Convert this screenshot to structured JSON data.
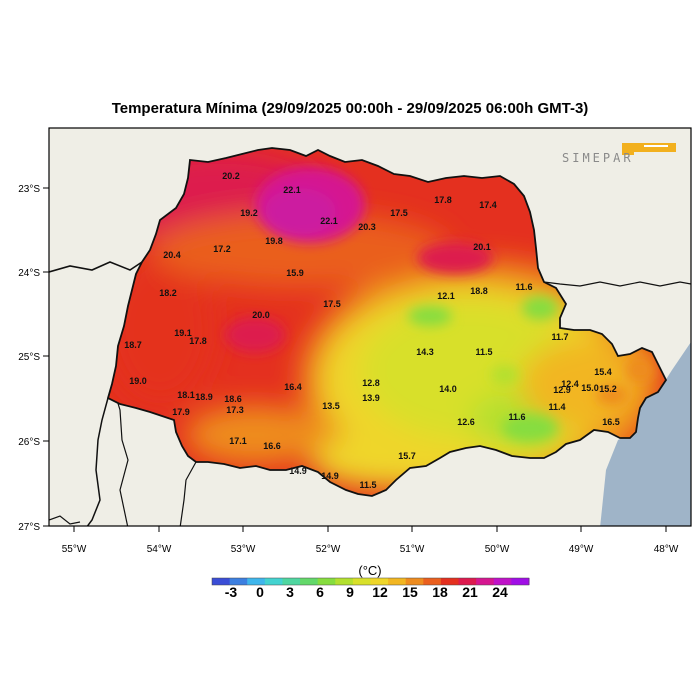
{
  "title": "Temperatura Mínima (29/09/2025 00:00h - 29/09/2025 06:00h GMT-3)",
  "logo_text": "SIMEPAR",
  "colors": {
    "land": "#efeee6",
    "ocean": "#9fb4c8",
    "logo_accent": "#f2b01e"
  },
  "axes": {
    "lon_labels": [
      "55°W",
      "54°W",
      "53°W",
      "52°W",
      "51°W",
      "50°W",
      "49°W",
      "48°W"
    ],
    "lat_labels": [
      "23°S",
      "24°S",
      "25°S",
      "26°S",
      "27°S"
    ]
  },
  "colorbar": {
    "unit": "(°C)",
    "ticks": [
      "-3",
      "0",
      "3",
      "6",
      "9",
      "12",
      "15",
      "18",
      "21",
      "24"
    ],
    "colors": [
      "#3a4dd6",
      "#3c7fe0",
      "#3fb6ec",
      "#43d3d0",
      "#4fd6a0",
      "#63d86a",
      "#86dd3f",
      "#b3e02f",
      "#d8e02a",
      "#efd62a",
      "#f2b622",
      "#ee8c1f",
      "#ea5f1e",
      "#e4301f",
      "#dd1a4e",
      "#d51690",
      "#bf12c8",
      "#a00ee6"
    ]
  },
  "stations": [
    {
      "label": "20.2"
    },
    {
      "label": "22.1"
    },
    {
      "label": "19.2"
    },
    {
      "label": "22.1"
    },
    {
      "label": "20.3"
    },
    {
      "label": "17.5"
    },
    {
      "label": "17.8"
    },
    {
      "label": "17.4"
    },
    {
      "label": "19.8"
    },
    {
      "label": "17.2"
    },
    {
      "label": "20.4"
    },
    {
      "label": "20.1"
    },
    {
      "label": "15.9"
    },
    {
      "label": "18.2"
    },
    {
      "label": "12.1"
    },
    {
      "label": "18.8"
    },
    {
      "label": "11.6"
    },
    {
      "label": "17.5"
    },
    {
      "label": "20.0"
    },
    {
      "label": "19.1"
    },
    {
      "label": "17.8"
    },
    {
      "label": "18.7"
    },
    {
      "label": "11.7"
    },
    {
      "label": "14.3"
    },
    {
      "label": "11.5"
    },
    {
      "label": "19.0"
    },
    {
      "label": "12.8"
    },
    {
      "label": "16.4"
    },
    {
      "label": "13.9"
    },
    {
      "label": "14.0"
    },
    {
      "label": "18.1"
    },
    {
      "label": "18.9"
    },
    {
      "label": "18.6"
    },
    {
      "label": "12.4"
    },
    {
      "label": "12.9"
    },
    {
      "label": "15.0"
    },
    {
      "label": "15.4"
    },
    {
      "label": "15.2"
    },
    {
      "label": "13.5"
    },
    {
      "label": "17.9"
    },
    {
      "label": "17.3"
    },
    {
      "label": "11.4"
    },
    {
      "label": "12.6"
    },
    {
      "label": "11.6"
    },
    {
      "label": "16.5"
    },
    {
      "label": "17.1"
    },
    {
      "label": "16.6"
    },
    {
      "label": "15.7"
    },
    {
      "label": "14.9"
    },
    {
      "label": "14.9"
    },
    {
      "label": "11.5"
    }
  ]
}
